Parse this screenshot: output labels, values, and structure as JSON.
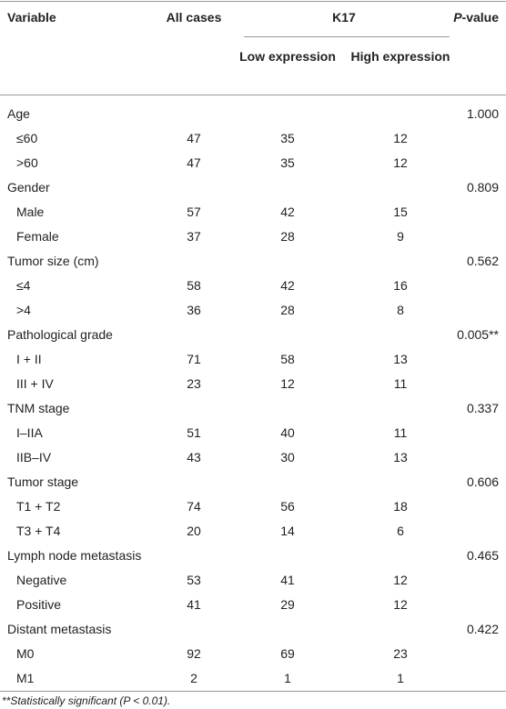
{
  "table": {
    "header": {
      "variable": "Variable",
      "all_cases": "All cases",
      "group": "K17",
      "low": "Low expression",
      "high": "High expression",
      "p_value": {
        "italic": "P",
        "text": "-value"
      }
    },
    "groups": [
      {
        "label": "Age",
        "p_value": "1.000",
        "rows": [
          [
            "≤60",
            "47",
            "35",
            "12"
          ],
          [
            ">60",
            "47",
            "35",
            "12"
          ]
        ]
      },
      {
        "label": "Gender",
        "p_value": "0.809",
        "rows": [
          [
            "Male",
            "57",
            "42",
            "15"
          ],
          [
            "Female",
            "37",
            "28",
            "9"
          ]
        ]
      },
      {
        "label": "Tumor size (cm)",
        "p_value": "0.562",
        "rows": [
          [
            "≤4",
            "58",
            "42",
            "16"
          ],
          [
            ">4",
            "36",
            "28",
            "8"
          ]
        ]
      },
      {
        "label": "Pathological grade",
        "p_value": "0.005**",
        "rows": [
          [
            "I + II",
            "71",
            "58",
            "13"
          ],
          [
            "III + IV",
            "23",
            "12",
            "11"
          ]
        ]
      },
      {
        "label": "TNM stage",
        "p_value": "0.337",
        "rows": [
          [
            "I–IIA",
            "51",
            "40",
            "11"
          ],
          [
            "IIB–IV",
            "43",
            "30",
            "13"
          ]
        ]
      },
      {
        "label": "Tumor stage",
        "p_value": "0.606",
        "rows": [
          [
            "T1 + T2",
            "74",
            "56",
            "18"
          ],
          [
            "T3 + T4",
            "20",
            "14",
            "6"
          ]
        ]
      },
      {
        "label": "Lymph node metastasis",
        "p_value": "0.465",
        "rows": [
          [
            "Negative",
            "53",
            "41",
            "12"
          ],
          [
            "Positive",
            "41",
            "29",
            "12"
          ]
        ]
      },
      {
        "label": "Distant metastasis",
        "p_value": "0.422",
        "rows": [
          [
            "M0",
            "92",
            "69",
            "23"
          ],
          [
            "M1",
            "2",
            "1",
            "1"
          ]
        ]
      }
    ],
    "footnote": "**Statistically significant (P < 0.01)."
  }
}
